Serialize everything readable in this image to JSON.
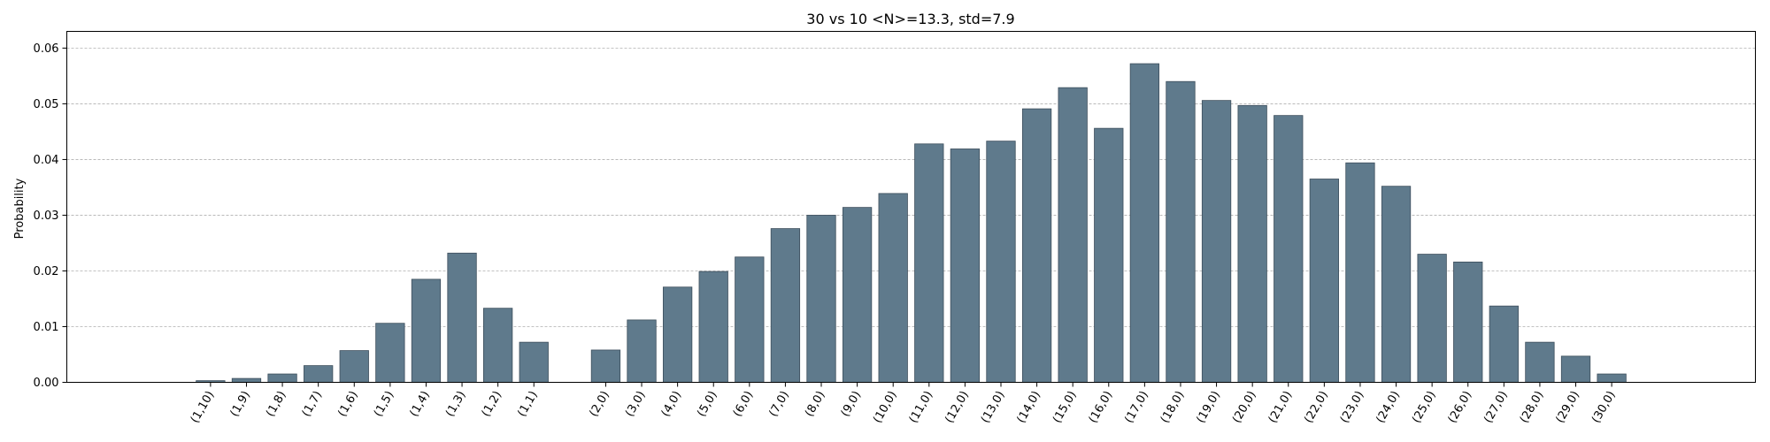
{
  "chart_data": {
    "type": "bar",
    "title": "30 vs 10  <N>=13.3, std=7.9",
    "xlabel": "",
    "ylabel": "Probability",
    "ylim": [
      0,
      0.063
    ],
    "yticks": [
      0.0,
      0.01,
      0.02,
      0.03,
      0.04,
      0.05,
      0.06
    ],
    "ytick_labels": [
      "0.00",
      "0.01",
      "0.02",
      "0.03",
      "0.04",
      "0.05",
      "0.06"
    ],
    "grid": true,
    "bar_color": "#5f7a8c",
    "categories": [
      "(1,10)",
      "(1,9)",
      "(1,8)",
      "(1,7)",
      "(1,6)",
      "(1,5)",
      "(1,4)",
      "(1,3)",
      "(1,2)",
      "(1,1)",
      "(2,0)",
      "(3,0)",
      "(4,0)",
      "(5,0)",
      "(6,0)",
      "(7,0)",
      "(8,0)",
      "(9,0)",
      "(10,0)",
      "(11,0)",
      "(12,0)",
      "(13,0)",
      "(14,0)",
      "(15,0)",
      "(16,0)",
      "(17,0)",
      "(18,0)",
      "(19,0)",
      "(20,0)",
      "(21,0)",
      "(22,0)",
      "(23,0)",
      "(24,0)",
      "(25,0)",
      "(26,0)",
      "(27,0)",
      "(28,0)",
      "(29,0)",
      "(30,0)"
    ],
    "x_positions": [
      0,
      1,
      2,
      3,
      4,
      5,
      6,
      7,
      8,
      9,
      11,
      12,
      13,
      14,
      15,
      16,
      17,
      18,
      19,
      20,
      21,
      22,
      23,
      24,
      25,
      26,
      27,
      28,
      29,
      30,
      31,
      32,
      33,
      34,
      35,
      36,
      37,
      38,
      39
    ],
    "xlim": [
      -4,
      43
    ],
    "values": [
      0.0003,
      0.0007,
      0.0015,
      0.003,
      0.0057,
      0.0106,
      0.0185,
      0.0232,
      0.0133,
      0.0072,
      0.0058,
      0.0112,
      0.0171,
      0.0199,
      0.0225,
      0.0276,
      0.03,
      0.0314,
      0.0339,
      0.0428,
      0.0419,
      0.0433,
      0.0491,
      0.0529,
      0.0456,
      0.0572,
      0.054,
      0.0506,
      0.0497,
      0.0479,
      0.0365,
      0.0394,
      0.0352,
      0.023,
      0.0216,
      0.0137,
      0.0072,
      0.0047,
      0.0015
    ]
  }
}
